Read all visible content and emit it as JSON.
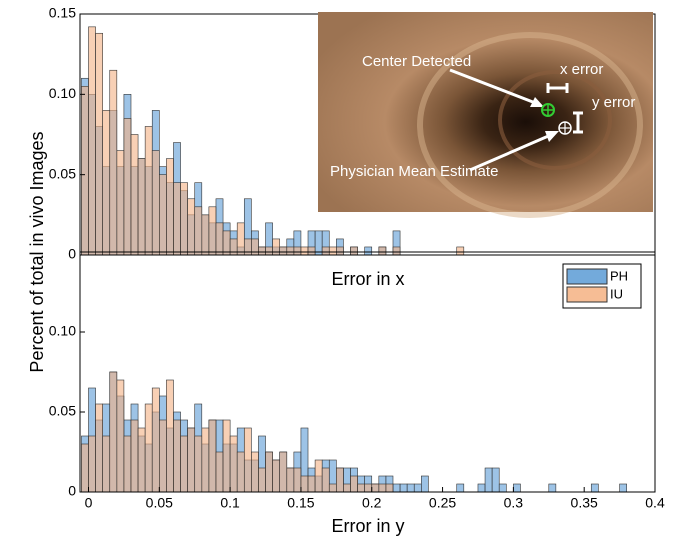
{
  "chart_data": [
    {
      "type": "histogram",
      "xlabel": "Error in x",
      "ylabel": "Percent of total in vivo Images",
      "annotations": [
        "Center Detected",
        "x error",
        "y error",
        "Physician Mean Estimate"
      ],
      "bins": [
        -0.005,
        0,
        0.005,
        0.01,
        0.015,
        0.02,
        0.025,
        0.03,
        0.035,
        0.04,
        0.045,
        0.05,
        0.055,
        0.06,
        0.065,
        0.07,
        0.075,
        0.08,
        0.085,
        0.09,
        0.095,
        0.1,
        0.105,
        0.11,
        0.115,
        0.12,
        0.125,
        0.13,
        0.135,
        0.14,
        0.145,
        0.15,
        0.155,
        0.16,
        0.165,
        0.17,
        0.175,
        0.18,
        0.185,
        0.19,
        0.195,
        0.2,
        0.205,
        0.21,
        0.215,
        0.22,
        0.225,
        0.23,
        0.235,
        0.24,
        0.245,
        0.25,
        0.255,
        0.26,
        0.265
      ],
      "series": [
        {
          "name": "PH",
          "color": "#5b9bd5",
          "values": [
            0.11,
            0.1,
            0.08,
            0.055,
            0.09,
            0.055,
            0.1,
            0.055,
            0.06,
            0.055,
            0.09,
            0.055,
            0.045,
            0.07,
            0.04,
            0.025,
            0.045,
            0.025,
            0.02,
            0.035,
            0.02,
            0.015,
            0.005,
            0.035,
            0.015,
            0.005,
            0.02,
            0.005,
            0.005,
            0.01,
            0.015,
            0,
            0.015,
            0.015,
            0.015,
            0,
            0.01,
            0,
            0.005,
            0,
            0.005,
            0,
            0.005,
            0,
            0.015,
            0,
            0,
            0,
            0,
            0,
            0,
            0,
            0,
            0
          ]
        },
        {
          "name": "IU",
          "color": "#f4b183",
          "values": [
            0.105,
            0.142,
            0.138,
            0.09,
            0.115,
            0.065,
            0.085,
            0.075,
            0.06,
            0.08,
            0.065,
            0.05,
            0.06,
            0.045,
            0.045,
            0.035,
            0.03,
            0.025,
            0.03,
            0.02,
            0.015,
            0.01,
            0.02,
            0.01,
            0.01,
            0.005,
            0.005,
            0.01,
            0.005,
            0.005,
            0.005,
            0.005,
            0.005,
            0,
            0.005,
            0.005,
            0.005,
            0,
            0.005,
            0,
            0,
            0,
            0.005,
            0,
            0.005,
            0,
            0,
            0,
            0,
            0,
            0,
            0,
            0,
            0.005
          ]
        }
      ],
      "xlim": [
        -0.006,
        0.4
      ],
      "ylim": [
        0,
        0.15
      ],
      "yticks": [
        0,
        0.05,
        {
          "value": 0.1,
          "label": "0.10"
        },
        0.15
      ]
    },
    {
      "type": "histogram",
      "xlabel": "Error in y",
      "legend": "upper right",
      "bins": [
        -0.005,
        0,
        0.005,
        0.01,
        0.015,
        0.02,
        0.025,
        0.03,
        0.035,
        0.04,
        0.045,
        0.05,
        0.055,
        0.06,
        0.065,
        0.07,
        0.075,
        0.08,
        0.085,
        0.09,
        0.095,
        0.1,
        0.105,
        0.11,
        0.115,
        0.12,
        0.125,
        0.13,
        0.135,
        0.14,
        0.145,
        0.15,
        0.155,
        0.16,
        0.165,
        0.17,
        0.175,
        0.18,
        0.185,
        0.19,
        0.195,
        0.2,
        0.205,
        0.21,
        0.215,
        0.22,
        0.225,
        0.23,
        0.235,
        0.24,
        0.245,
        0.25,
        0.255,
        0.26,
        0.265,
        0.27,
        0.275,
        0.28,
        0.285,
        0.29,
        0.295,
        0.3,
        0.305,
        0.31,
        0.315,
        0.32,
        0.325,
        0.33,
        0.335,
        0.34,
        0.345,
        0.35,
        0.355,
        0.36,
        0.365,
        0.37,
        0.375,
        0.38,
        0.385
      ],
      "series": [
        {
          "name": "PH",
          "color": "#5b9bd5",
          "values": [
            0.035,
            0.065,
            0.045,
            0.055,
            0.075,
            0.06,
            0.045,
            0.055,
            0.035,
            0.03,
            0.05,
            0.06,
            0.04,
            0.05,
            0.045,
            0.04,
            0.055,
            0.03,
            0.045,
            0.045,
            0.03,
            0.03,
            0.04,
            0.02,
            0.02,
            0.035,
            0.025,
            0.02,
            0.025,
            0.015,
            0.025,
            0.04,
            0.015,
            0.01,
            0.02,
            0.02,
            0.015,
            0.015,
            0.015,
            0.01,
            0.01,
            0.005,
            0.01,
            0.01,
            0.005,
            0.005,
            0.005,
            0.005,
            0.01,
            0,
            0,
            0,
            0,
            0.005,
            0,
            0,
            0.005,
            0.015,
            0.015,
            0.005,
            0,
            0.005,
            0,
            0,
            0,
            0,
            0.005,
            0,
            0,
            0,
            0,
            0,
            0.005,
            0,
            0,
            0,
            0.005,
            0
          ]
        },
        {
          "name": "IU",
          "color": "#f4b183",
          "values": [
            0.03,
            0.035,
            0.055,
            0.035,
            0.075,
            0.07,
            0.035,
            0.045,
            0.04,
            0.055,
            0.065,
            0.045,
            0.07,
            0.045,
            0.035,
            0.04,
            0.035,
            0.04,
            0.045,
            0.025,
            0.045,
            0.035,
            0.025,
            0.04,
            0.025,
            0.015,
            0.025,
            0.02,
            0.025,
            0.015,
            0.015,
            0.01,
            0.01,
            0.02,
            0.015,
            0.005,
            0.015,
            0.005,
            0.01,
            0.005,
            0.005,
            0.005,
            0.005,
            0.005,
            0,
            0,
            0,
            0,
            0,
            0,
            0,
            0,
            0,
            0,
            0,
            0,
            0,
            0,
            0,
            0,
            0,
            0,
            0,
            0,
            0,
            0,
            0,
            0,
            0,
            0,
            0,
            0,
            0,
            0,
            0,
            0,
            0,
            0
          ]
        }
      ],
      "xlim": [
        -0.006,
        0.4
      ],
      "ylim": [
        0,
        0.15
      ],
      "xticks": [
        0,
        0.05,
        0.1,
        0.15,
        0.2,
        0.25,
        0.3,
        0.35,
        0.4
      ],
      "yticks": [
        0,
        0.05,
        {
          "value": 0.1,
          "label": "0.10"
        }
      ]
    }
  ]
}
